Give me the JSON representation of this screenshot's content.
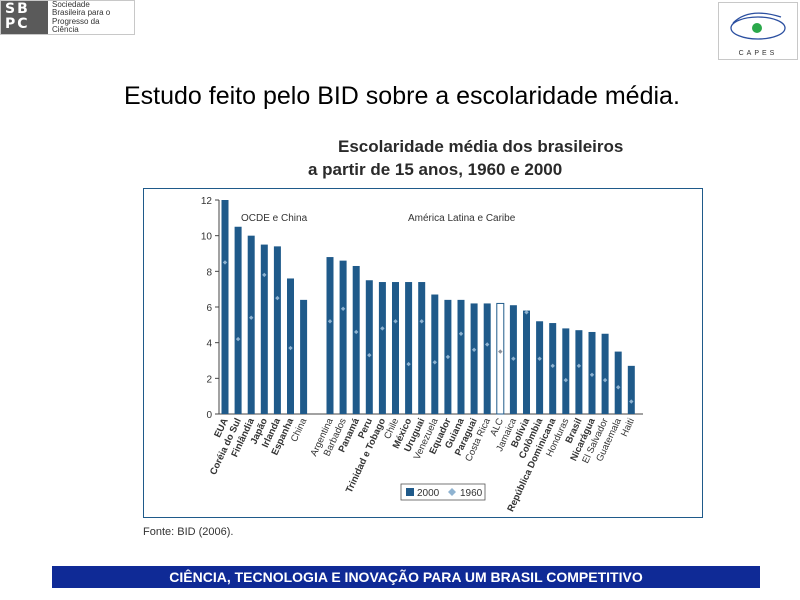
{
  "logos": {
    "sbpc_mark_line1": "SB",
    "sbpc_mark_line2": "PC",
    "sbpc_text": [
      "Sociedade",
      "Brasileira para o",
      "Progresso da",
      "Ciência"
    ],
    "capes_text": "CAPES"
  },
  "heading": "Estudo feito pelo BID sobre a escolaridade média.",
  "source": "Fonte: BID (2006).",
  "footer": "CIÊNCIA, TECNOLOGIA E INOVAÇÃO PARA UM BRASIL COMPETITIVO",
  "colors": {
    "bar": "#1f5a8a",
    "marker": "#8fb3d1",
    "footer_bg": "#0f2a96",
    "frame": "#1f5a8a"
  },
  "chart_data": {
    "type": "bar",
    "title": [
      "Escolaridade média dos brasileiros",
      "a partir de 15 anos, 1960 e 2000"
    ],
    "ylim": [
      0,
      12
    ],
    "yticks": [
      0,
      2,
      4,
      6,
      8,
      10,
      12
    ],
    "group_labels": [
      "OCDE e China",
      "América Latina e Caribe"
    ],
    "legend": [
      "2000",
      "1960"
    ],
    "legend_position": "bottom",
    "categories": [
      "EUA",
      "Coréia do Sul",
      "Finlândia",
      "Japão",
      "Irlanda",
      "Espanha",
      "China",
      "Argentina",
      "Barbados",
      "Panamá",
      "Peru",
      "Trinidad e Tobago",
      "Chile",
      "México",
      "Uruguai",
      "Venezuela",
      "Equador",
      "Guiana",
      "Paraguai",
      "Costa Rica",
      "ALC",
      "Jamaica",
      "Bolívia",
      "Colômbia",
      "República Dominicana",
      "Honduras",
      "Brasil",
      "Nicarágua",
      "El Salvador",
      "Guatemala",
      "Haiti"
    ],
    "group_of": [
      0,
      0,
      0,
      0,
      0,
      0,
      0,
      1,
      1,
      1,
      1,
      1,
      1,
      1,
      1,
      1,
      1,
      1,
      1,
      1,
      1,
      1,
      1,
      1,
      1,
      1,
      1,
      1,
      1,
      1,
      1
    ],
    "bold_labels": [
      "EUA",
      "Coréia do Sul",
      "Finlândia",
      "Japão",
      "Irlanda",
      "Espanha",
      "Panamá",
      "Peru",
      "Trinidad e Tobago",
      "México",
      "Uruguai",
      "Equador",
      "Guiana",
      "Paraguai",
      "Bolívia",
      "Colômbia",
      "República Dominicana",
      "Brasil",
      "Nicarágua"
    ],
    "highlight": "ALC",
    "series": [
      {
        "name": "2000",
        "values": [
          12.0,
          10.5,
          10.0,
          9.5,
          9.4,
          7.6,
          6.4,
          8.8,
          8.6,
          8.3,
          7.5,
          7.4,
          7.4,
          7.4,
          7.4,
          6.7,
          6.4,
          6.4,
          6.2,
          6.2,
          6.2,
          6.1,
          5.8,
          5.2,
          5.1,
          4.8,
          4.7,
          4.6,
          4.5,
          3.5,
          2.7
        ]
      },
      {
        "name": "1960",
        "values": [
          8.5,
          4.2,
          5.4,
          7.8,
          6.5,
          3.7,
          null,
          5.2,
          5.9,
          4.6,
          3.3,
          4.8,
          5.2,
          2.8,
          5.2,
          2.9,
          3.2,
          4.5,
          3.6,
          3.9,
          3.5,
          3.1,
          5.7,
          3.1,
          2.7,
          1.9,
          2.7,
          2.2,
          1.9,
          1.5,
          0.7
        ]
      }
    ]
  }
}
